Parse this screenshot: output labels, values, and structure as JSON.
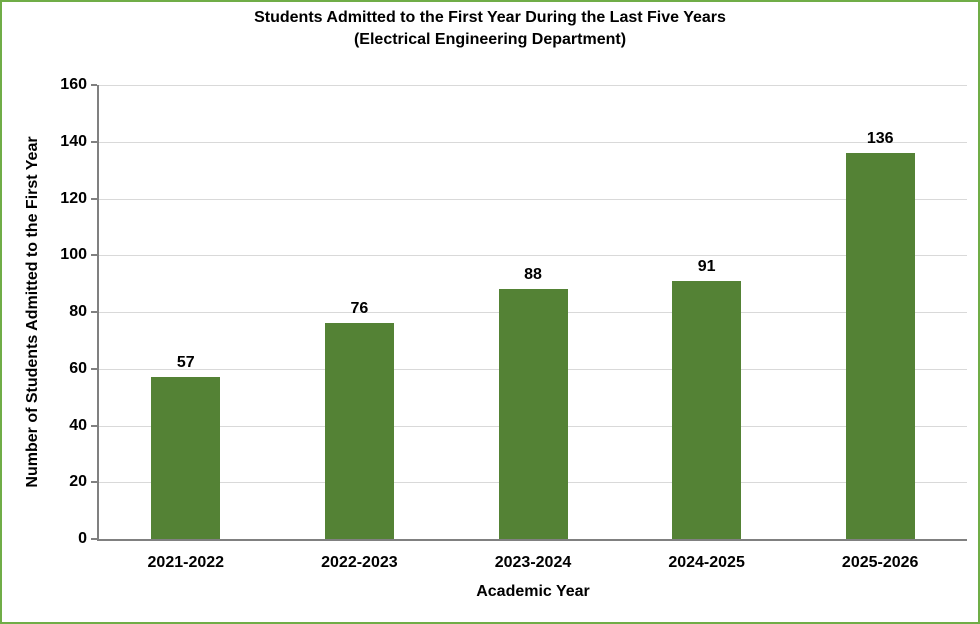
{
  "chart_data": {
    "type": "bar",
    "title": "Students Admitted to the First Year During the Last Five Years",
    "subtitle": "(Electrical Engineering Department)",
    "categories": [
      "2021-2022",
      "2022-2023",
      "2023-2024",
      "2024-2025",
      "2025-2026"
    ],
    "values": [
      57,
      76,
      88,
      91,
      136
    ],
    "xlabel": "Academic Year",
    "ylabel": "Number of Students Admitted to the First Year",
    "ylim": [
      0,
      160
    ],
    "ytick_step": 20,
    "ytick_labels": [
      "0",
      "20",
      "40",
      "60",
      "80",
      "100",
      "120",
      "140",
      "160"
    ],
    "grid": "horizontal",
    "legend_position": "none",
    "value_labels_shown": true,
    "colors": {
      "bar_fill": "#548235",
      "gridline": "#d9d9d9",
      "axis_line": "#808080",
      "page_border": "#70ad47",
      "text": "#000000",
      "background": "#ffffff"
    }
  }
}
